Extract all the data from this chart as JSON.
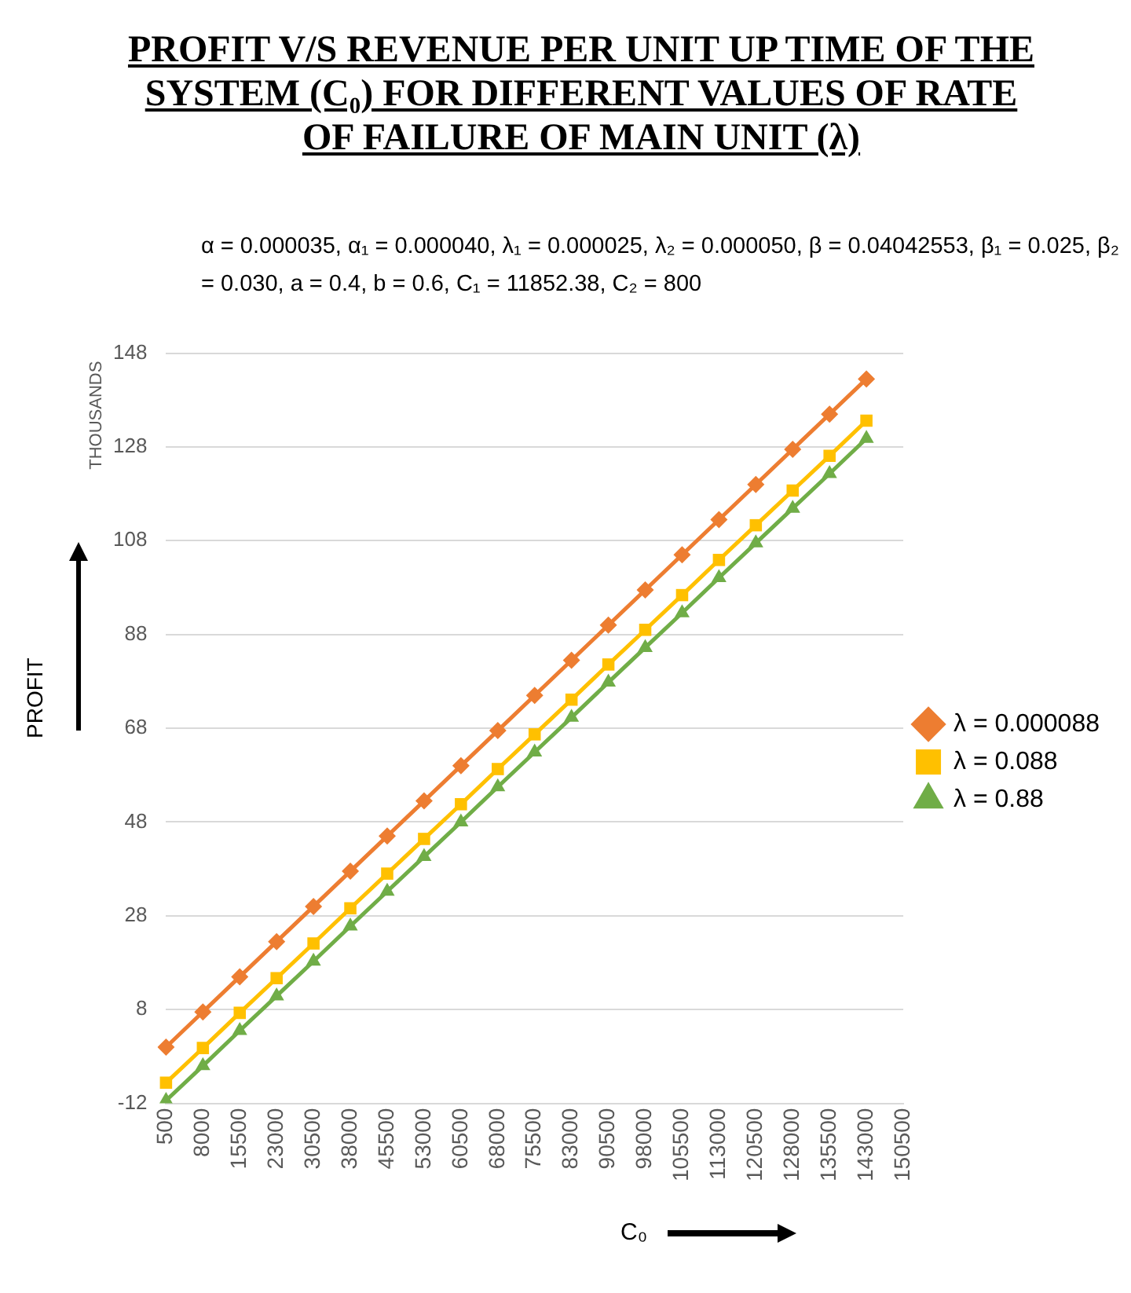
{
  "chart_data": {
    "type": "line",
    "title": "PROFIT V/S  REVENUE PER UNIT UP TIME OF THE SYSTEM (C₀) FOR  DIFFERENT VALUES OF RATE OF FAILURE OF MAIN UNIT (λ)",
    "subtitle": "α = 0.000035, α₁ = 0.000040, λ₁ = 0.000025, λ₂ = 0.000050, β = 0.04042553, β₁ = 0.025,  β₂ = 0.030, a = 0.4, b = 0.6, C₁ = 11852.38, C₂ =  800",
    "xlabel": "C₀",
    "ylabel": "PROFIT",
    "annotations": [
      "THOUSANDS"
    ],
    "categories": [
      "500",
      "8000",
      "15500",
      "23000",
      "30500",
      "38000",
      "45500",
      "53000",
      "60500",
      "68000",
      "75500",
      "83000",
      "90500",
      "98000",
      "105500",
      "113000",
      "120500",
      "128000",
      "135500",
      "143000",
      "150500"
    ],
    "ylim": [
      -12,
      148
    ],
    "yticks": [
      -12,
      8,
      28,
      48,
      68,
      88,
      108,
      128,
      148
    ],
    "grid": "y",
    "legend": "right",
    "line_style": "solid",
    "series": [
      {
        "name": "λ = 0.000088",
        "color": "#ed7d31",
        "marker": "diamond",
        "values": [
          0,
          7.5,
          15,
          22.5,
          30,
          37.5,
          45,
          52.5,
          60,
          67.5,
          75,
          82.5,
          90,
          97.5,
          105,
          112.5,
          120,
          127.5,
          135,
          142.5,
          null
        ]
      },
      {
        "name": "λ = 0.088",
        "color": "#ffc000",
        "marker": "square",
        "values": [
          -7.6,
          -0.2,
          7.3,
          14.7,
          22.1,
          29.6,
          37,
          44.4,
          51.8,
          59.3,
          66.7,
          74.1,
          81.6,
          89,
          96.4,
          103.9,
          111.3,
          118.7,
          126.1,
          133.6,
          null
        ]
      },
      {
        "name": "λ = 0.88",
        "color": "#70ad47",
        "marker": "triangle",
        "values": [
          -11.4,
          -4,
          3.5,
          10.9,
          18.3,
          25.8,
          33.2,
          40.6,
          48,
          55.5,
          62.9,
          70.3,
          77.8,
          85.2,
          92.6,
          100.1,
          107.5,
          114.9,
          122.3,
          129.8,
          null
        ]
      }
    ]
  }
}
